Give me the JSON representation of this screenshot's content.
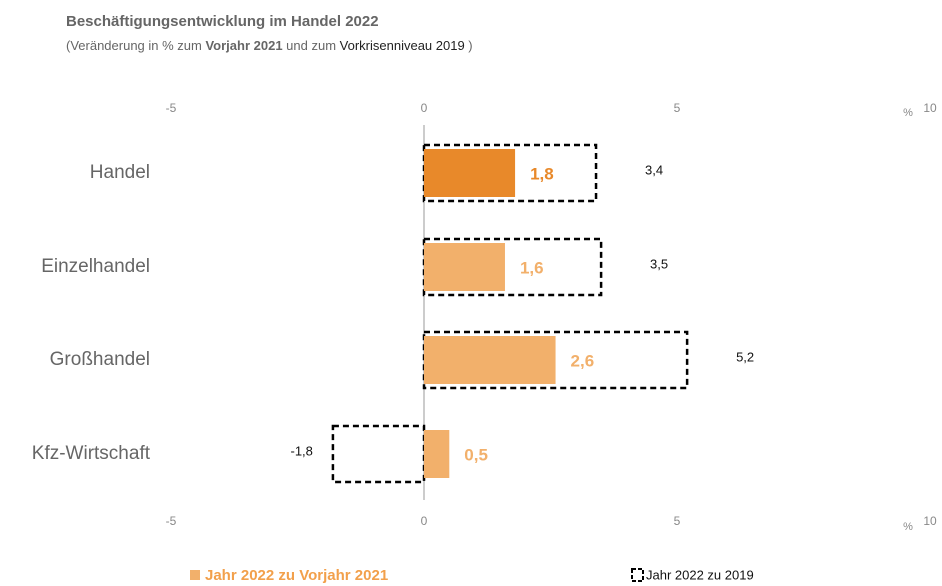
{
  "chart_data": {
    "type": "hbar",
    "title": "Beschäftigungsentwicklung im Handel 2022",
    "subtitle_parts": [
      "(Veränderung  in % zum ",
      "Vorjahr 2021",
      " und zum ",
      "Vorkrisenniveau  2019",
      " )"
    ],
    "x_unit": "%",
    "categories": [
      "Handel",
      "Einzelhandel",
      "Großhandel",
      "Kfz-Wirtschaft"
    ],
    "series": [
      {
        "name": "Jahr 2022 zu Vorjahr 2021",
        "color": "#f2b06b",
        "colors": [
          "#e8892a",
          "#f2b06b",
          "#f2b06b",
          "#f2b06b"
        ],
        "label_color": "#e8892a",
        "values": [
          1.8,
          1.6,
          2.6,
          0.5
        ],
        "value_labels": [
          "1,8",
          "1,6",
          "2,6",
          "0,5"
        ]
      },
      {
        "name": "Jahr 2022 zu 2019",
        "style": "dashed-outline",
        "color": "#000000",
        "values": [
          3.4,
          3.5,
          5.2,
          -1.8
        ],
        "value_labels": [
          "3,4",
          "3,5",
          "5,2",
          "-1,8"
        ]
      }
    ],
    "xlim": [
      -5,
      10
    ],
    "xticks": [
      -5,
      0,
      5,
      10
    ]
  }
}
